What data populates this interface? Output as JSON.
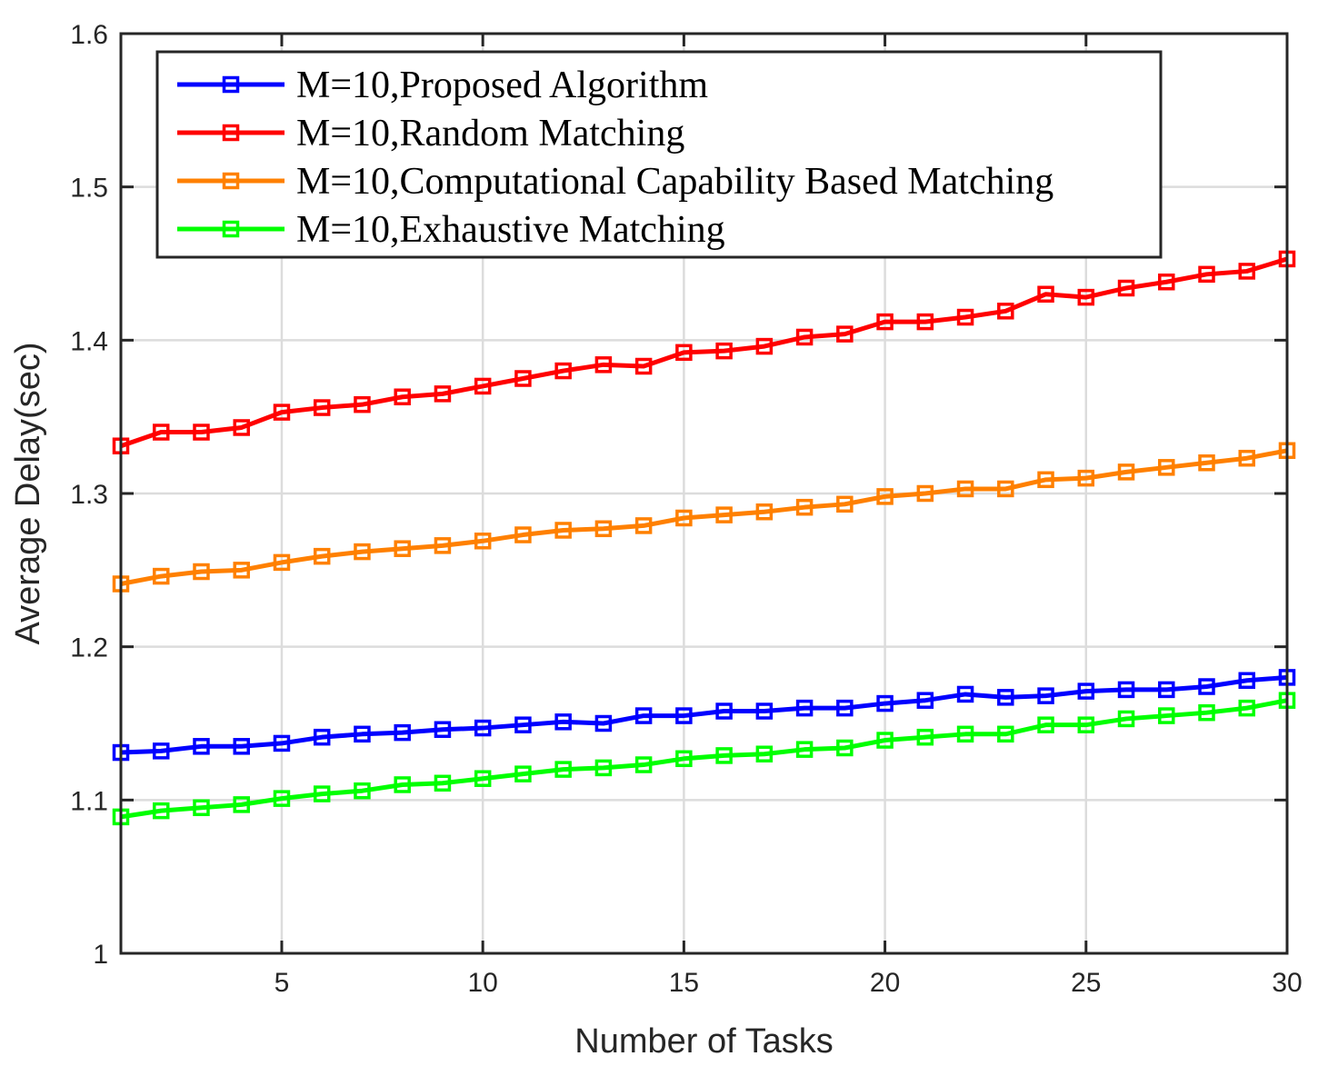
{
  "chart_data": {
    "type": "line",
    "title": "",
    "xlabel": "Number of Tasks",
    "ylabel": "Average Delay(sec)",
    "xlim": [
      1,
      30
    ],
    "ylim": [
      1.0,
      1.6
    ],
    "grid": true,
    "legend_position": "top-left",
    "x_ticks": [
      5,
      10,
      15,
      20,
      25,
      30
    ],
    "x_tick_labels": [
      "5",
      "10",
      "15",
      "20",
      "25",
      "30"
    ],
    "y_ticks": [
      1.0,
      1.1,
      1.2,
      1.3,
      1.4,
      1.5,
      1.6
    ],
    "y_tick_labels": [
      "1",
      "1.1",
      "1.2",
      "1.3",
      "1.4",
      "1.5",
      "1.6"
    ],
    "x": [
      1,
      2,
      3,
      4,
      5,
      6,
      7,
      8,
      9,
      10,
      11,
      12,
      13,
      14,
      15,
      16,
      17,
      18,
      19,
      20,
      21,
      22,
      23,
      24,
      25,
      26,
      27,
      28,
      29,
      30
    ],
    "series": [
      {
        "name": "M=10,Proposed Algorithm",
        "color": "#0000ff",
        "marker": "square",
        "values": [
          1.131,
          1.132,
          1.135,
          1.135,
          1.137,
          1.141,
          1.143,
          1.144,
          1.146,
          1.147,
          1.149,
          1.151,
          1.15,
          1.155,
          1.155,
          1.158,
          1.158,
          1.16,
          1.16,
          1.163,
          1.165,
          1.169,
          1.167,
          1.168,
          1.171,
          1.172,
          1.172,
          1.174,
          1.178,
          1.18
        ]
      },
      {
        "name": "M=10,Random Matching",
        "color": "#ff0000",
        "marker": "square",
        "values": [
          1.331,
          1.34,
          1.34,
          1.343,
          1.353,
          1.356,
          1.358,
          1.363,
          1.365,
          1.37,
          1.375,
          1.38,
          1.384,
          1.383,
          1.392,
          1.393,
          1.396,
          1.402,
          1.404,
          1.412,
          1.412,
          1.415,
          1.419,
          1.43,
          1.428,
          1.434,
          1.438,
          1.443,
          1.445,
          1.453
        ]
      },
      {
        "name": "M=10,Computational Capability Based Matching",
        "color": "#ff8000",
        "marker": "square",
        "values": [
          1.241,
          1.246,
          1.249,
          1.25,
          1.255,
          1.259,
          1.262,
          1.264,
          1.266,
          1.269,
          1.273,
          1.276,
          1.277,
          1.279,
          1.284,
          1.286,
          1.288,
          1.291,
          1.293,
          1.298,
          1.3,
          1.303,
          1.303,
          1.309,
          1.31,
          1.314,
          1.317,
          1.32,
          1.323,
          1.328
        ]
      },
      {
        "name": "M=10,Exhaustive Matching",
        "color": "#00ff00",
        "marker": "square",
        "values": [
          1.089,
          1.093,
          1.095,
          1.097,
          1.101,
          1.104,
          1.106,
          1.11,
          1.111,
          1.114,
          1.117,
          1.12,
          1.121,
          1.123,
          1.127,
          1.129,
          1.13,
          1.133,
          1.134,
          1.139,
          1.141,
          1.143,
          1.143,
          1.149,
          1.149,
          1.153,
          1.155,
          1.157,
          1.16,
          1.165
        ]
      }
    ]
  }
}
